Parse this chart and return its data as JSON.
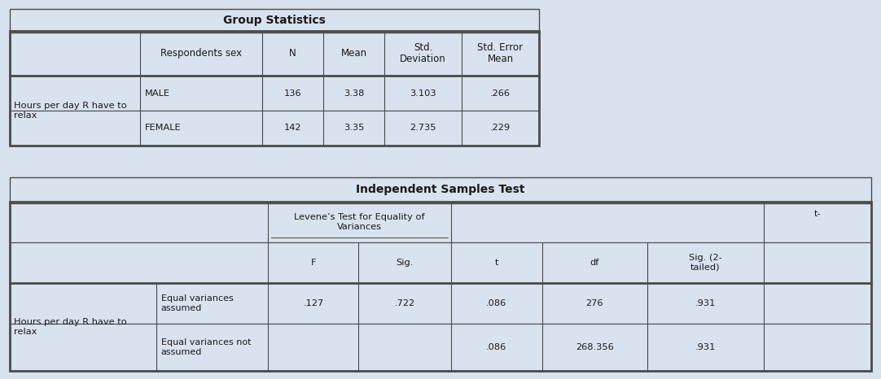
{
  "bg_color": "#d9e2ef",
  "cell_bg": "#d9e2ef",
  "text_color": "#1a1a1a",
  "border_color": "#4a4a4a",
  "title1": "Group Statistics",
  "title2": "Independent Samples Test",
  "gs_headers": [
    "Respondents sex",
    "N",
    "Mean",
    "Std.\nDeviation",
    "Std. Error\nMean"
  ],
  "gs_row_label": "Hours per day R have to\nrelax",
  "gs_rows": [
    [
      "MALE",
      "136",
      "3.38",
      "3.103",
      ".266"
    ],
    [
      "FEMALE",
      "142",
      "3.35",
      "2.735",
      ".229"
    ]
  ],
  "ist_levene_label": "Levene’s Test for Equality of\nVariances",
  "ist_t_partial": "t-",
  "ist_headers": [
    "F",
    "Sig.",
    "t",
    "df",
    "Sig. (2-\ntailed)"
  ],
  "ist_row_label": "Hours per day R have to\nrelax",
  "ist_subrows": [
    [
      "Equal variances\nassumed",
      ".127",
      ".722",
      ".086",
      "276",
      ".931"
    ],
    [
      "Equal variances not\nassumed",
      "",
      "",
      ".086",
      "268.356",
      ".931"
    ]
  ],
  "fig_w": 10.82,
  "fig_h": 4.66,
  "dpi": 100
}
